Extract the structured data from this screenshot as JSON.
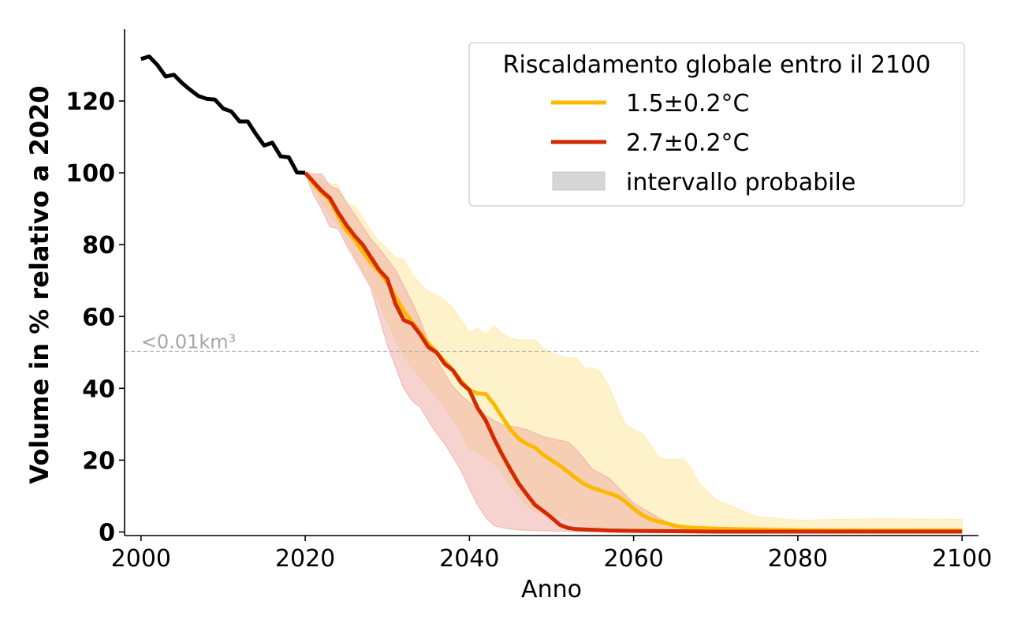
{
  "chart_data": {
    "type": "line",
    "title": "",
    "xlabel": "Anno",
    "ylabel": "Volume in % relativo a 2020",
    "xlim": [
      1998,
      2102
    ],
    "ylim": [
      -1,
      140
    ],
    "xticks": [
      2000,
      2020,
      2040,
      2060,
      2080,
      2100
    ],
    "xtick_labels": [
      "2000",
      "2020",
      "2040",
      "2060",
      "2080",
      "2100"
    ],
    "yticks": [
      0,
      20,
      40,
      60,
      80,
      100,
      120
    ],
    "ytick_labels": [
      "0",
      "20",
      "40",
      "60",
      "80",
      "100",
      "120"
    ],
    "grid": false,
    "colors": {
      "historical": "#000000",
      "scenario_1_5": "#fbb900",
      "scenario_2_7": "#d42a00",
      "band_1_5": "#fde9a8",
      "band_2_7": "#eea79f",
      "legend_patch": "#d6d6d6",
      "threshold": "#b3b3b3",
      "annotation": "#a6a6a6"
    },
    "threshold_line": {
      "y": 50.3,
      "label": "<0.01km³",
      "style": "dashed"
    },
    "legend": {
      "title": "Riscaldamento globale entro il 2100",
      "placement": "top-right",
      "entries": [
        {
          "label": "1.5±0.2°C",
          "kind": "line",
          "color_key": "scenario_1_5"
        },
        {
          "label": "2.7±0.2°C",
          "kind": "line",
          "color_key": "scenario_2_7"
        },
        {
          "label": "intervallo probabile",
          "kind": "patch",
          "color_key": "legend_patch"
        }
      ]
    },
    "series": [
      {
        "name": "historical",
        "x": [
          2000,
          2001,
          2002,
          2003,
          2004,
          2005,
          2006,
          2007,
          2008,
          2009,
          2010,
          2011,
          2012,
          2013,
          2014,
          2015,
          2016,
          2017,
          2018,
          2019,
          2020
        ],
        "y": [
          131.7,
          132.4,
          130.0,
          126.8,
          127.3,
          125.0,
          123.1,
          121.4,
          120.6,
          120.4,
          117.9,
          117.1,
          114.3,
          114.3,
          110.8,
          107.6,
          108.4,
          104.6,
          104.3,
          100.1,
          100.0
        ]
      },
      {
        "name": "1.5±0.2°C",
        "x": [
          2020,
          2021,
          2022,
          2023,
          2024,
          2025,
          2026,
          2027,
          2028,
          2029,
          2030,
          2031,
          2032,
          2033,
          2034,
          2035,
          2036,
          2037,
          2038,
          2039,
          2040,
          2041,
          2042,
          2043,
          2044,
          2045,
          2046,
          2047,
          2048,
          2049,
          2050,
          2051,
          2052,
          2053,
          2054,
          2055,
          2056,
          2057,
          2058,
          2059,
          2060,
          2061,
          2062,
          2063,
          2064,
          2065,
          2066,
          2067,
          2068,
          2070,
          2075,
          2080,
          2090,
          2100
        ],
        "y": [
          100.0,
          97.0,
          94.5,
          92.5,
          88.0,
          84.0,
          81.5,
          78.0,
          75.0,
          72.5,
          69.5,
          65.5,
          61.5,
          58.5,
          55.5,
          52.5,
          50.0,
          47.5,
          45.0,
          42.0,
          39.5,
          38.6,
          38.4,
          35.5,
          32.0,
          28.5,
          26.0,
          24.5,
          23.5,
          21.5,
          20.0,
          18.5,
          16.8,
          15.0,
          13.3,
          12.3,
          11.5,
          10.8,
          10.0,
          8.5,
          6.5,
          4.8,
          3.6,
          2.9,
          2.4,
          1.8,
          1.4,
          1.2,
          1.1,
          0.9,
          0.7,
          0.5,
          0.4,
          0.4
        ],
        "lower": [
          100.0,
          96.0,
          91.5,
          88.0,
          85.5,
          81.5,
          77.0,
          73.0,
          69.0,
          64.0,
          58.5,
          53.5,
          49.0,
          45.5,
          43.0,
          40.5,
          37.5,
          34.5,
          31.0,
          27.5,
          23.0,
          22.3,
          20.5,
          19.0,
          16.5,
          13.0,
          10.0,
          7.5,
          5.6,
          5.2,
          4.8,
          4.2,
          3.3,
          2.3,
          1.8,
          1.5,
          1.3,
          1.2,
          1.1,
          1.0,
          0.9,
          0.8,
          0.7,
          0.6,
          0.5,
          0.5,
          0.4,
          0.4,
          0.3,
          0.3,
          0.2,
          0.2,
          0.1,
          0.1
        ],
        "upper": [
          100.0,
          99.0,
          98.0,
          97.0,
          96.7,
          91.3,
          90.9,
          87.5,
          84.0,
          80.8,
          79.0,
          76.3,
          76.0,
          72.0,
          69.0,
          67.0,
          66.0,
          64.5,
          62.4,
          59.0,
          55.5,
          56.7,
          55.0,
          57.4,
          55.2,
          54.0,
          53.5,
          53.5,
          53.5,
          51.0,
          50.0,
          49.0,
          48.5,
          48.5,
          45.7,
          45.7,
          44.5,
          40.5,
          35.0,
          30.0,
          28.5,
          27.5,
          24.5,
          21.0,
          20.2,
          20.2,
          20.4,
          18.0,
          13.5,
          9.0,
          4.3,
          3.3,
          3.7,
          3.5
        ]
      },
      {
        "name": "2.7±0.2°C",
        "x": [
          2020,
          2021,
          2022,
          2023,
          2024,
          2025,
          2026,
          2027,
          2028,
          2029,
          2030,
          2031,
          2032,
          2033,
          2034,
          2035,
          2036,
          2037,
          2038,
          2039,
          2040,
          2041,
          2042,
          2043,
          2044,
          2045,
          2046,
          2047,
          2048,
          2049,
          2050,
          2051,
          2052,
          2053,
          2055,
          2057,
          2060,
          2065,
          2070,
          2080,
          2090,
          2100
        ],
        "y": [
          100.0,
          97.5,
          95.0,
          93.0,
          89.0,
          85.5,
          82.5,
          80.0,
          76.5,
          73.0,
          70.5,
          63.5,
          59.0,
          58.0,
          55.0,
          51.5,
          50.0,
          46.8,
          45.0,
          41.5,
          39.5,
          34.5,
          31.0,
          26.0,
          21.5,
          17.4,
          13.5,
          10.4,
          7.5,
          5.8,
          4.0,
          2.0,
          1.1,
          0.8,
          0.6,
          0.4,
          0.3,
          0.2,
          0.1,
          0.1,
          0.1,
          0.1
        ],
        "lower": [
          100.0,
          94.0,
          90.0,
          85.0,
          84.5,
          80.0,
          76.0,
          72.0,
          68.0,
          60.0,
          52.0,
          46.0,
          40.0,
          36.5,
          34.8,
          31.0,
          27.5,
          24.5,
          20.8,
          17.0,
          12.0,
          7.5,
          4.0,
          1.8,
          1.2,
          0.8,
          0.6,
          0.5,
          0.4,
          0.3,
          0.3,
          0.2,
          0.2,
          0.1,
          0.1,
          0.1,
          0.1,
          0.0,
          0.0,
          0.0,
          0.0,
          0.0
        ],
        "upper": [
          100.0,
          99.6,
          99.8,
          96.3,
          95.4,
          92.0,
          88.5,
          85.0,
          81.5,
          79.0,
          76.0,
          73.0,
          68.5,
          64.0,
          59.0,
          53.0,
          48.0,
          44.0,
          40.5,
          38.0,
          36.0,
          34.5,
          32.5,
          31.0,
          30.0,
          29.5,
          29.0,
          28.5,
          27.5,
          26.5,
          26.0,
          25.5,
          25.0,
          23.0,
          17.4,
          15.0,
          8.0,
          1.5,
          0.6,
          0.3,
          0.2,
          0.2
        ]
      }
    ]
  }
}
